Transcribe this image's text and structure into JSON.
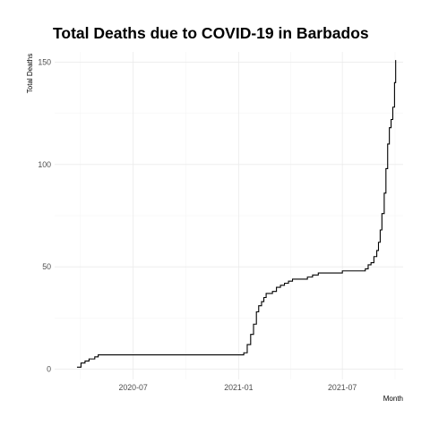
{
  "chart_data": {
    "type": "line",
    "title": "Total Deaths due to COVID-19 in Barbados",
    "xlabel": "Month",
    "ylabel": "Total Deaths",
    "x_axis_type": "date",
    "xlim": [
      "2020-02-15",
      "2021-10-15"
    ],
    "ylim": [
      -5,
      155
    ],
    "x_ticks": [
      {
        "value": "2020-07-01",
        "label": "2020-07"
      },
      {
        "value": "2021-01-01",
        "label": "2021-01"
      },
      {
        "value": "2021-07-01",
        "label": "2021-07"
      }
    ],
    "y_ticks": [
      0,
      50,
      100,
      150
    ],
    "grid": true,
    "series": [
      {
        "color": "#000000",
        "x": [
          "2020-03-25",
          "2020-04-01",
          "2020-04-08",
          "2020-04-15",
          "2020-04-25",
          "2020-05-01",
          "2020-05-20",
          "2020-07-01",
          "2020-10-01",
          "2021-01-01",
          "2021-01-10",
          "2021-01-16",
          "2021-01-22",
          "2021-01-27",
          "2021-02-01",
          "2021-02-05",
          "2021-02-10",
          "2021-02-14",
          "2021-02-18",
          "2021-02-22",
          "2021-03-01",
          "2021-03-08",
          "2021-03-15",
          "2021-03-22",
          "2021-03-29",
          "2021-04-05",
          "2021-04-12",
          "2021-04-20",
          "2021-05-01",
          "2021-05-10",
          "2021-05-20",
          "2021-06-01",
          "2021-06-15",
          "2021-06-25",
          "2021-07-01",
          "2021-07-15",
          "2021-08-01",
          "2021-08-10",
          "2021-08-15",
          "2021-08-20",
          "2021-08-25",
          "2021-08-30",
          "2021-09-02",
          "2021-09-05",
          "2021-09-08",
          "2021-09-12",
          "2021-09-15",
          "2021-09-18",
          "2021-09-21",
          "2021-09-24",
          "2021-09-27",
          "2021-09-30",
          "2021-10-02"
        ],
        "y": [
          1,
          3,
          4,
          5,
          6,
          7,
          7,
          7,
          7,
          7,
          8,
          12,
          17,
          22,
          28,
          31,
          33,
          35,
          37,
          37,
          38,
          40,
          41,
          42,
          43,
          44,
          44,
          44,
          45,
          46,
          47,
          47,
          47,
          47,
          48,
          48,
          48,
          49,
          51,
          52,
          55,
          58,
          62,
          68,
          76,
          86,
          98,
          110,
          118,
          122,
          128,
          140,
          151
        ]
      }
    ]
  }
}
